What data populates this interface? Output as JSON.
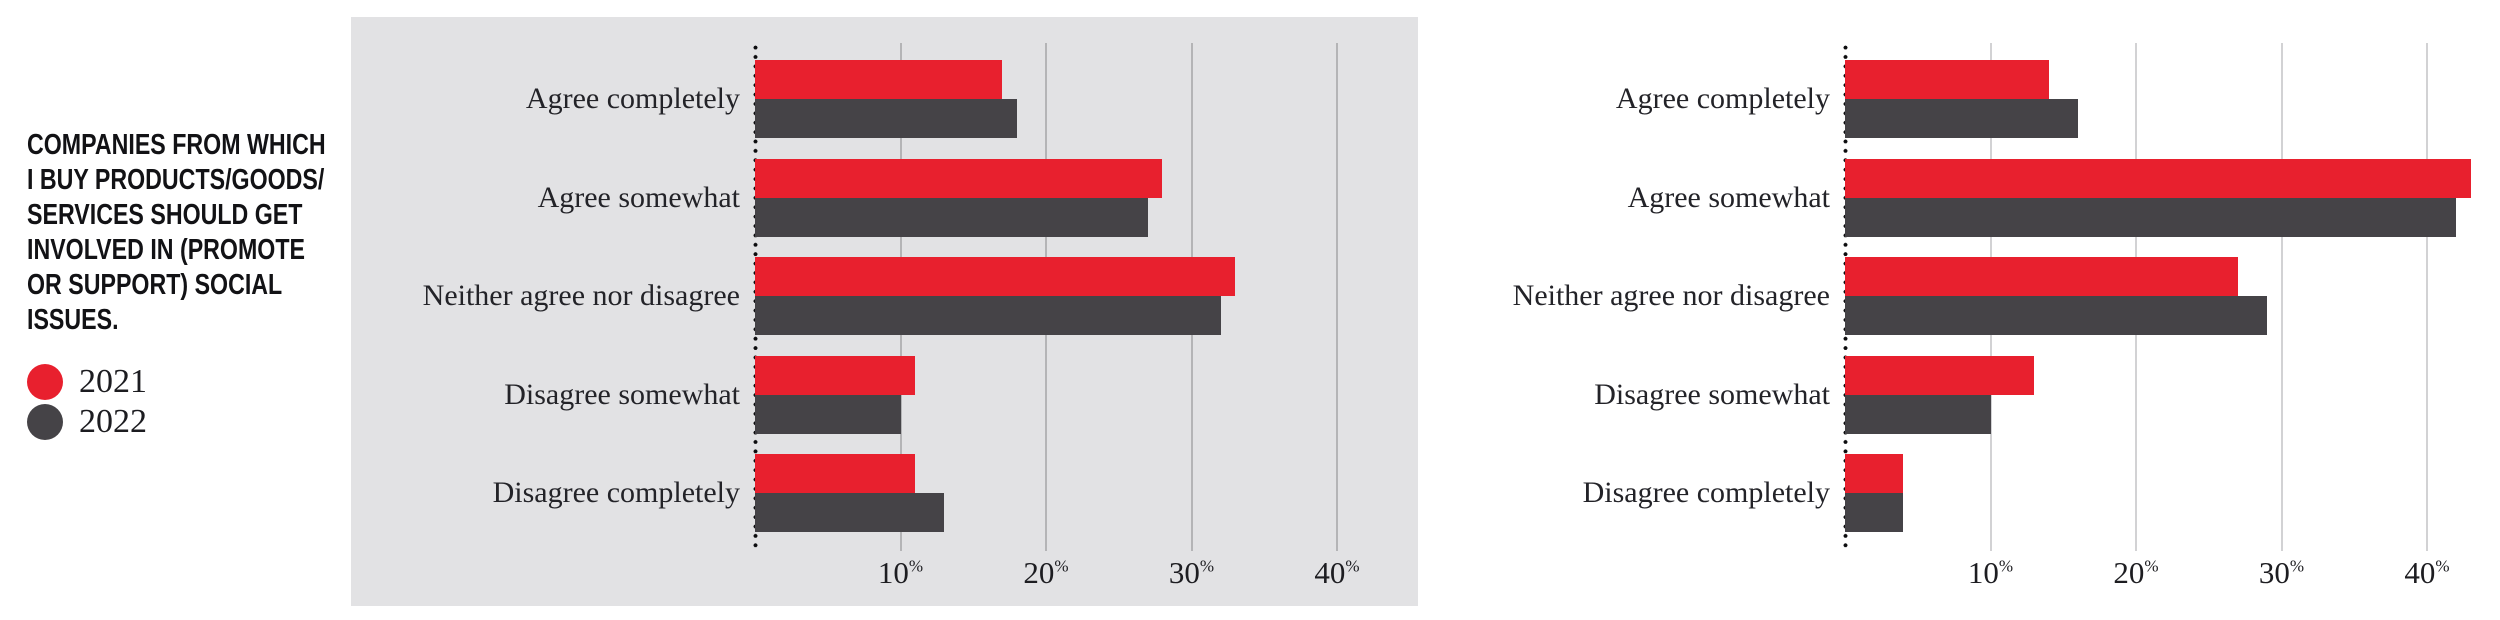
{
  "sidebar": {
    "title": "COMPANIES FROM WHICH\nI BUY PRODUCTS/GOODS/\nSERVICES SHOULD GET\nINVOLVED IN (PROMOTE\nOR SUPPORT) SOCIAL\nISSUES.",
    "legend": [
      {
        "label": "2021",
        "color": "#e8202e"
      },
      {
        "label": "2022",
        "color": "#454347"
      }
    ]
  },
  "percent_sign": "%",
  "chart_data": [
    {
      "type": "bar",
      "orientation": "horizontal",
      "panel_background": "#e2e2e4",
      "categories": [
        "Agree completely",
        "Agree somewhat",
        "Neither agree nor disagree",
        "Disagree somewhat",
        "Disagree completely"
      ],
      "series": [
        {
          "name": "2021",
          "color": "#e8202e",
          "values": [
            17,
            28,
            33,
            11,
            11
          ]
        },
        {
          "name": "2022",
          "color": "#454347",
          "values": [
            18,
            27,
            32,
            10,
            13
          ]
        }
      ],
      "xlim": [
        0,
        45
      ],
      "ticks": [
        10,
        20,
        30,
        40
      ],
      "tick_suffix": "%",
      "grid": true,
      "legend_position": "outside-left"
    },
    {
      "type": "bar",
      "orientation": "horizontal",
      "panel_background": "#ffffff",
      "categories": [
        "Agree completely",
        "Agree somewhat",
        "Neither agree nor disagree",
        "Disagree somewhat",
        "Disagree completely"
      ],
      "series": [
        {
          "name": "2021",
          "color": "#e8202e",
          "values": [
            14,
            43,
            27,
            13,
            4
          ]
        },
        {
          "name": "2022",
          "color": "#454347",
          "values": [
            16,
            42,
            29,
            10,
            4
          ]
        }
      ],
      "xlim": [
        0,
        45
      ],
      "ticks": [
        10,
        20,
        30,
        40
      ],
      "tick_suffix": "%",
      "grid": true,
      "legend_position": "outside-left"
    }
  ]
}
